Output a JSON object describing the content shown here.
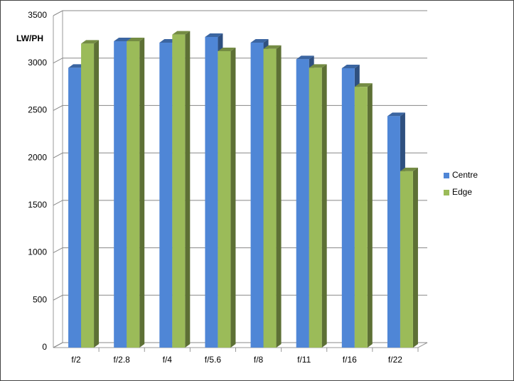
{
  "chart_data": {
    "type": "bar3d",
    "y_axis_label": "LW/PH",
    "categories": [
      "f/2",
      "f/2.8",
      "f/4",
      "f/5.6",
      "f/8",
      "f/11",
      "f/16",
      "f/22"
    ],
    "series": [
      {
        "name": "Centre",
        "color": "#4f86d6",
        "values": [
          2950,
          3230,
          3215,
          3275,
          3215,
          3040,
          2945,
          2440
        ]
      },
      {
        "name": "Edge",
        "color": "#9bbb59",
        "values": [
          3205,
          3230,
          3300,
          3125,
          3150,
          2950,
          2750,
          1860
        ]
      }
    ],
    "ylim": [
      0,
      3500
    ],
    "yticks": [
      0,
      500,
      1000,
      1500,
      2000,
      2500,
      3000,
      3500
    ],
    "grid": true
  }
}
